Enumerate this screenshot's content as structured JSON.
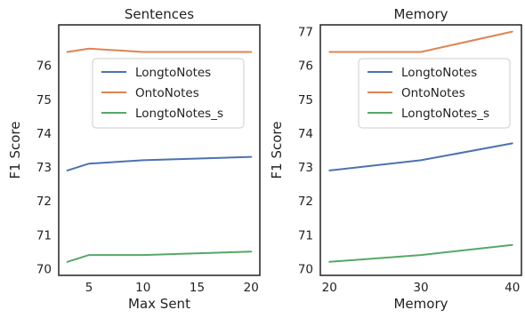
{
  "chart_data": [
    {
      "type": "line",
      "title": "Sentences",
      "xlabel": "Max Sent",
      "ylabel": "F1 Score",
      "xlim": [
        2.2,
        20.8
      ],
      "ylim": [
        69.8,
        77.2
      ],
      "xticks": [
        5,
        10,
        15,
        20
      ],
      "yticks": [
        70,
        71,
        72,
        73,
        74,
        75,
        76
      ],
      "x": [
        3,
        5,
        10,
        20
      ],
      "series": [
        {
          "name": "LongtoNotes",
          "color": "#4C72B0",
          "values": [
            72.9,
            73.1,
            73.2,
            73.3
          ]
        },
        {
          "name": "OntoNotes",
          "color": "#DD8452",
          "values": [
            76.4,
            76.5,
            76.4,
            76.4
          ]
        },
        {
          "name": "LongtoNotes_s",
          "color": "#55A868",
          "values": [
            70.2,
            70.4,
            70.4,
            70.5
          ]
        }
      ],
      "grid": false,
      "legend": "center-right"
    },
    {
      "type": "line",
      "title": "Memory",
      "xlabel": "Memory",
      "ylabel": "F1 Score",
      "xlim": [
        19,
        41
      ],
      "ylim": [
        69.8,
        77.2
      ],
      "xticks": [
        20,
        30,
        40
      ],
      "yticks": [
        70,
        71,
        72,
        73,
        74,
        75,
        76,
        77
      ],
      "x": [
        20,
        30,
        40
      ],
      "series": [
        {
          "name": "LongtoNotes",
          "color": "#4C72B0",
          "values": [
            72.9,
            73.2,
            73.7
          ]
        },
        {
          "name": "OntoNotes",
          "color": "#DD8452",
          "values": [
            76.4,
            76.4,
            77.0
          ]
        },
        {
          "name": "LongtoNotes_s",
          "color": "#55A868",
          "values": [
            70.2,
            70.4,
            70.7
          ]
        }
      ],
      "grid": false,
      "legend": "center-right"
    }
  ]
}
